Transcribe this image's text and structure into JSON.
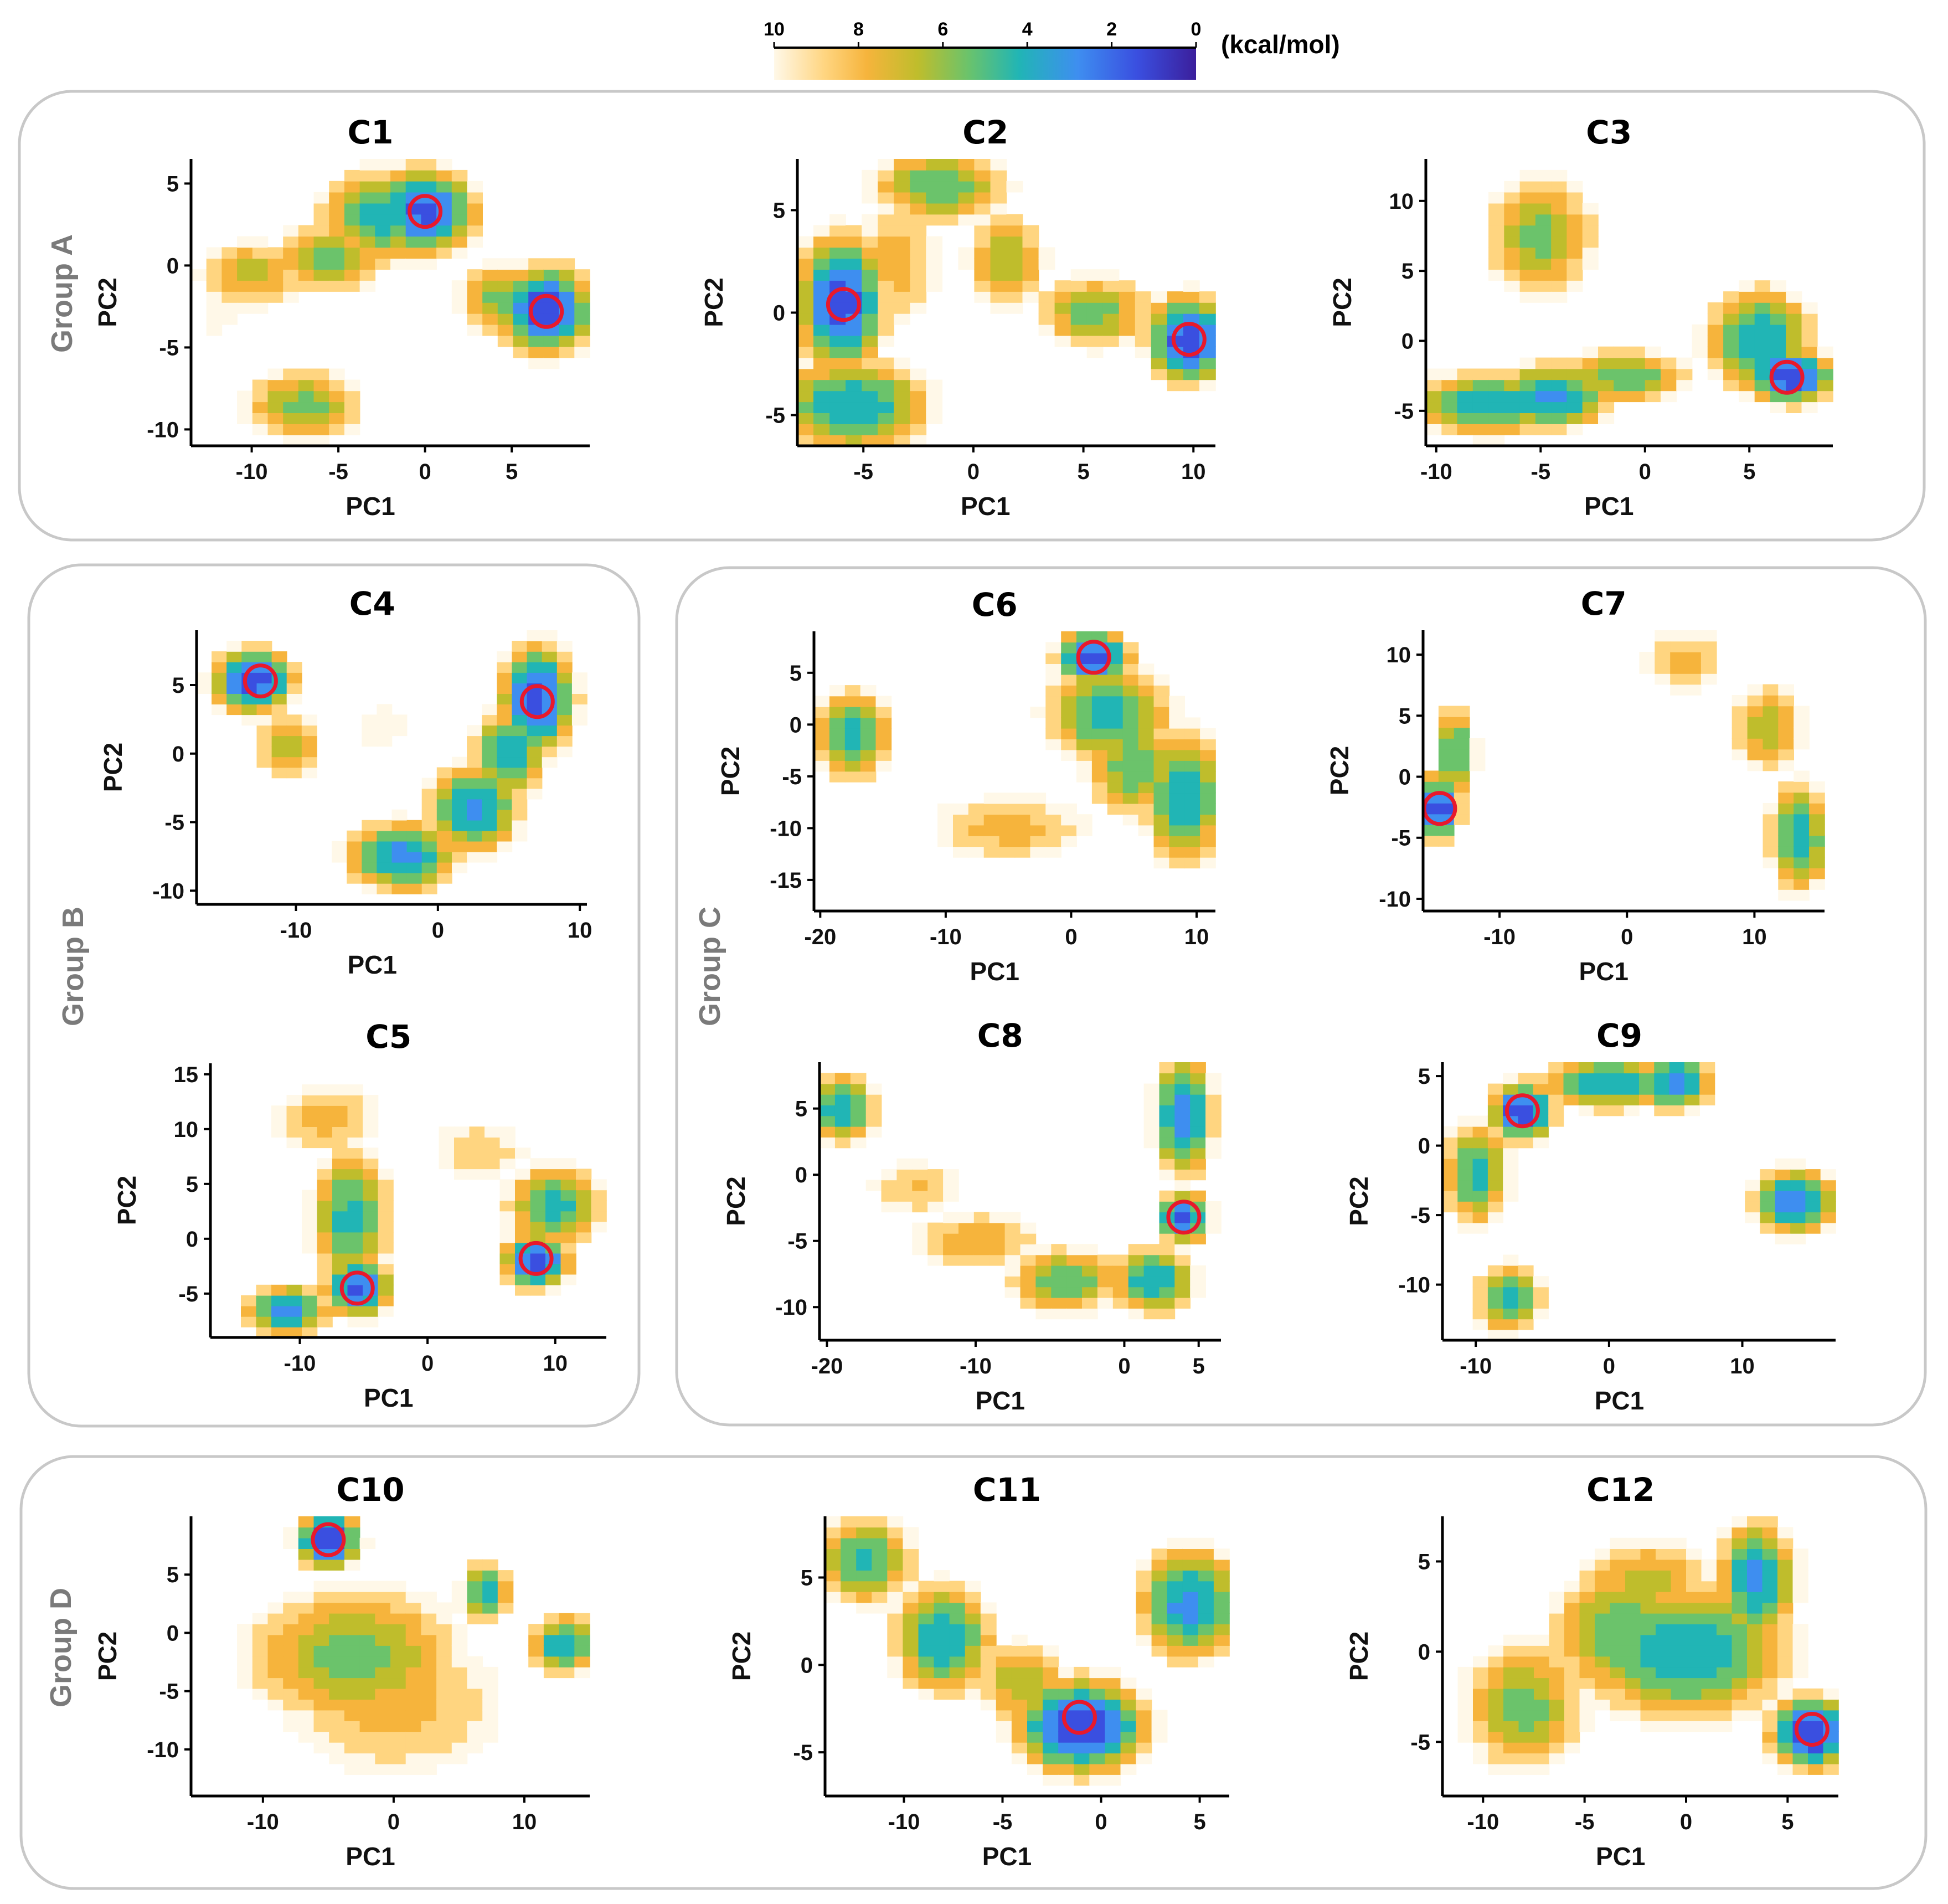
{
  "colorbar": {
    "ticks": [
      10,
      8,
      6,
      4,
      2,
      0
    ],
    "unit": "(kcal/mol)",
    "colors": [
      "#fff8e8",
      "#ffd580",
      "#f6b43c",
      "#bfbd2c",
      "#6bc36b",
      "#21b5b5",
      "#3e8ef0",
      "#3a4fe0",
      "#3b1f9c"
    ]
  },
  "groups": [
    {
      "id": "A",
      "label": "Group A"
    },
    {
      "id": "B",
      "label": "Group B"
    },
    {
      "id": "C",
      "label": "Group C"
    },
    {
      "id": "D",
      "label": "Group D"
    }
  ],
  "marker_color": "#e8192c",
  "chart_data": [
    {
      "type": "heatmap",
      "title": "C1",
      "xlabel": "PC1",
      "ylabel": "PC2",
      "xlim": [
        -13.5,
        9.5
      ],
      "ylim": [
        -11,
        6.5
      ],
      "xticks": [
        -10,
        -5,
        0,
        5
      ],
      "yticks": [
        5,
        0,
        -5,
        -10
      ],
      "blobs": [
        [
          -10,
          -0.5,
          2.6,
          1.8,
          5.5
        ],
        [
          -5.5,
          0.5,
          2.6,
          1.8,
          4.5
        ],
        [
          -2.5,
          3,
          2.8,
          2.3,
          3.5
        ],
        [
          0,
          3.3,
          2.2,
          2,
          1.5
        ],
        [
          4.5,
          -2,
          2.2,
          1.8,
          4.5
        ],
        [
          7,
          -2.7,
          2,
          2,
          1.2
        ],
        [
          -7,
          -8.5,
          2.8,
          1.8,
          4.5
        ],
        [
          -12,
          -3,
          1.5,
          1.5,
          8.5
        ]
      ],
      "minima": [
        [
          0,
          3.3
        ],
        [
          7,
          -2.8
        ]
      ]
    },
    {
      "type": "heatmap",
      "title": "C2",
      "xlabel": "PC1",
      "ylabel": "PC2",
      "xlim": [
        -8,
        11
      ],
      "ylim": [
        -6.5,
        7.5
      ],
      "xticks": [
        -5,
        0,
        5,
        10
      ],
      "yticks": [
        5,
        0,
        -5
      ],
      "blobs": [
        [
          -6,
          0.5,
          1.5,
          2.5,
          1.5
        ],
        [
          -5.5,
          -4.5,
          2.8,
          1.8,
          3
        ],
        [
          -1.5,
          6.2,
          2.5,
          1.5,
          4
        ],
        [
          1.5,
          2.5,
          1.5,
          2,
          5
        ],
        [
          5.5,
          0,
          2.2,
          1.5,
          4.5
        ],
        [
          9.8,
          -1.3,
          1.4,
          1.6,
          1.2
        ],
        [
          -3.5,
          2.5,
          1.8,
          3,
          6.5
        ]
      ],
      "minima": [
        [
          -5.9,
          0.4
        ],
        [
          9.8,
          -1.3
        ]
      ]
    },
    {
      "type": "heatmap",
      "title": "C3",
      "xlabel": "PC1",
      "ylabel": "PC2",
      "xlim": [
        -10.5,
        9
      ],
      "ylim": [
        -7.5,
        13
      ],
      "xticks": [
        -10,
        -5,
        0,
        5
      ],
      "yticks": [
        10,
        5,
        0,
        -5
      ],
      "blobs": [
        [
          -5,
          7.5,
          2.2,
          3.5,
          4.5
        ],
        [
          -7.5,
          -4.5,
          3,
          1.8,
          3
        ],
        [
          -4.5,
          -4,
          2.2,
          1.8,
          2.5
        ],
        [
          -1,
          -2.5,
          2.5,
          1.5,
          4
        ],
        [
          5.5,
          0,
          2,
          3,
          3
        ],
        [
          7,
          -2.5,
          1.5,
          1.5,
          1.2
        ]
      ],
      "minima": [
        [
          6.8,
          -2.6
        ]
      ]
    },
    {
      "type": "heatmap",
      "title": "C4",
      "xlabel": "PC1",
      "ylabel": "PC2",
      "xlim": [
        -17,
        10.5
      ],
      "ylim": [
        -11,
        9
      ],
      "xticks": [
        -10,
        0,
        10
      ],
      "yticks": [
        5,
        0,
        -5,
        -10
      ],
      "blobs": [
        [
          -13,
          5.3,
          2.2,
          1.8,
          1.5
        ],
        [
          -10.5,
          0.5,
          2,
          2,
          5
        ],
        [
          7,
          4,
          2,
          3,
          1.5
        ],
        [
          5,
          0,
          2,
          2.5,
          3
        ],
        [
          2.5,
          -4,
          2.5,
          2.5,
          2.5
        ],
        [
          -2.5,
          -7.5,
          3,
          2,
          2.5
        ],
        [
          -4,
          2,
          2,
          2,
          8.5
        ]
      ],
      "minima": [
        [
          -12.5,
          5.3
        ],
        [
          7,
          3.8
        ]
      ]
    },
    {
      "type": "heatmap",
      "title": "C5",
      "xlabel": "PC1",
      "ylabel": "PC2",
      "xlim": [
        -17,
        14
      ],
      "ylim": [
        -9,
        16
      ],
      "xticks": [
        -10,
        0,
        10
      ],
      "yticks": [
        15,
        10,
        5,
        0,
        -5
      ],
      "blobs": [
        [
          -5.5,
          -4.5,
          2,
          2,
          1.5
        ],
        [
          -6,
          2,
          2.5,
          5,
          3.5
        ],
        [
          -11,
          -6.5,
          2.5,
          1.8,
          2.5
        ],
        [
          8.5,
          -2,
          2,
          2,
          1.5
        ],
        [
          10,
          3,
          3,
          3,
          3.5
        ],
        [
          -8,
          11,
          4,
          3,
          6.5
        ],
        [
          4,
          8,
          4,
          3,
          7.5
        ]
      ],
      "minima": [
        [
          -5.5,
          -4.5
        ],
        [
          8.5,
          -1.8
        ]
      ]
    },
    {
      "type": "heatmap",
      "title": "C6",
      "xlabel": "PC1",
      "ylabel": "PC2",
      "xlim": [
        -20.5,
        11.5
      ],
      "ylim": [
        -18,
        9
      ],
      "xticks": [
        -20,
        -10,
        0,
        10
      ],
      "yticks": [
        5,
        0,
        -5,
        -10,
        -15
      ],
      "blobs": [
        [
          1.8,
          6.5,
          2.2,
          2,
          1.2
        ],
        [
          3,
          1,
          4,
          4,
          3.5
        ],
        [
          9,
          -7,
          2.5,
          5,
          3
        ],
        [
          -17.5,
          -1,
          2.5,
          3.5,
          3.5
        ],
        [
          -5,
          -10,
          6,
          3,
          6.5
        ],
        [
          5,
          -4,
          3,
          4,
          4
        ]
      ],
      "minima": [
        [
          1.8,
          6.5
        ]
      ]
    },
    {
      "type": "heatmap",
      "title": "C7",
      "xlabel": "PC1",
      "ylabel": "PC2",
      "xlim": [
        -16,
        15.5
      ],
      "ylim": [
        -11,
        12
      ],
      "xticks": [
        -10,
        0,
        10
      ],
      "yticks": [
        10,
        5,
        0,
        -5,
        -10
      ],
      "blobs": [
        [
          -14.8,
          -2.5,
          1.3,
          2,
          1.2
        ],
        [
          -13.5,
          2,
          1.3,
          3,
          3.5
        ],
        [
          13.5,
          -5,
          1.8,
          3.5,
          3
        ],
        [
          11,
          4,
          2.5,
          3,
          5
        ],
        [
          4.5,
          9.5,
          3,
          2.5,
          6.5
        ],
        [
          -5,
          5,
          1,
          1,
          9.5
        ]
      ],
      "minima": [
        [
          -14.7,
          -2.6
        ]
      ]
    },
    {
      "type": "heatmap",
      "title": "C8",
      "xlabel": "PC1",
      "ylabel": "PC2",
      "xlim": [
        -20.5,
        6.5
      ],
      "ylim": [
        -12.5,
        8.5
      ],
      "xticks": [
        -20,
        -10,
        0,
        5
      ],
      "yticks": [
        5,
        0,
        -5,
        -10
      ],
      "blobs": [
        [
          -19,
          5,
          1.8,
          2,
          3
        ],
        [
          4,
          -3.2,
          1.3,
          1.5,
          1.5
        ],
        [
          4,
          4.5,
          1.5,
          3.5,
          2
        ],
        [
          2,
          -8,
          2.2,
          2,
          3
        ],
        [
          -4,
          -8,
          3,
          2,
          4
        ],
        [
          -10,
          -5,
          4,
          2,
          6
        ],
        [
          -14,
          -1,
          3,
          2,
          7
        ]
      ],
      "minima": [
        [
          4,
          -3.2
        ]
      ]
    },
    {
      "type": "heatmap",
      "title": "C9",
      "xlabel": "PC1",
      "ylabel": "PC2",
      "xlim": [
        -12.5,
        17
      ],
      "ylim": [
        -14,
        6
      ],
      "xticks": [
        -10,
        0,
        10
      ],
      "yticks": [
        5,
        0,
        -5,
        -10
      ],
      "blobs": [
        [
          -6.5,
          2.5,
          1.8,
          1.6,
          1.2
        ],
        [
          -10,
          -2,
          2,
          3,
          3.5
        ],
        [
          0,
          4.5,
          4,
          1.5,
          3
        ],
        [
          5,
          4.5,
          2,
          1.5,
          2
        ],
        [
          14,
          -4,
          2.5,
          1.8,
          2
        ],
        [
          -7.5,
          -11,
          2,
          2,
          3.5
        ]
      ],
      "minima": [
        [
          -6.5,
          2.5
        ]
      ]
    },
    {
      "type": "heatmap",
      "title": "C10",
      "xlabel": "PC1",
      "ylabel": "PC2",
      "xlim": [
        -15.5,
        15
      ],
      "ylim": [
        -14,
        10
      ],
      "xticks": [
        -10,
        0,
        10
      ],
      "yticks": [
        5,
        0,
        -5,
        -10
      ],
      "blobs": [
        [
          -5,
          8,
          1.8,
          1.8,
          1
        ],
        [
          -3,
          -2,
          7,
          5,
          4.5
        ],
        [
          7,
          3.5,
          1.5,
          2,
          3
        ],
        [
          13,
          -1,
          2,
          2,
          3
        ],
        [
          0,
          -6,
          8,
          6,
          6.5
        ]
      ],
      "minima": [
        [
          -5,
          8
        ]
      ]
    },
    {
      "type": "heatmap",
      "title": "C11",
      "xlabel": "PC1",
      "ylabel": "PC2",
      "xlim": [
        -14,
        6.5
      ],
      "ylim": [
        -7.5,
        8.5
      ],
      "xticks": [
        -10,
        -5,
        0,
        5
      ],
      "yticks": [
        5,
        0,
        -5
      ],
      "blobs": [
        [
          -1,
          -3.5,
          2.5,
          2,
          1
        ],
        [
          -8,
          1.5,
          2,
          2.5,
          3
        ],
        [
          -12,
          6,
          2,
          2,
          3.5
        ],
        [
          4.5,
          3.5,
          2,
          2.5,
          2.5
        ],
        [
          -4,
          -1,
          2,
          2,
          5
        ]
      ],
      "minima": [
        [
          -1.1,
          -3
        ]
      ]
    },
    {
      "type": "heatmap",
      "title": "C12",
      "xlabel": "PC1",
      "ylabel": "PC2",
      "xlim": [
        -12,
        7.5
      ],
      "ylim": [
        -8,
        7.5
      ],
      "xticks": [
        -10,
        -5,
        0,
        5
      ],
      "yticks": [
        5,
        0,
        -5
      ],
      "blobs": [
        [
          6.2,
          -4.5,
          1.5,
          1.5,
          1
        ],
        [
          0,
          0,
          4,
          3,
          3
        ],
        [
          3.5,
          4,
          1.5,
          2.5,
          2.5
        ],
        [
          -3,
          1,
          3,
          3,
          4
        ],
        [
          -8,
          -3,
          2.5,
          3,
          4.5
        ],
        [
          -2,
          4,
          3,
          2,
          5.5
        ]
      ],
      "minima": [
        [
          6.2,
          -4.3
        ]
      ]
    }
  ]
}
